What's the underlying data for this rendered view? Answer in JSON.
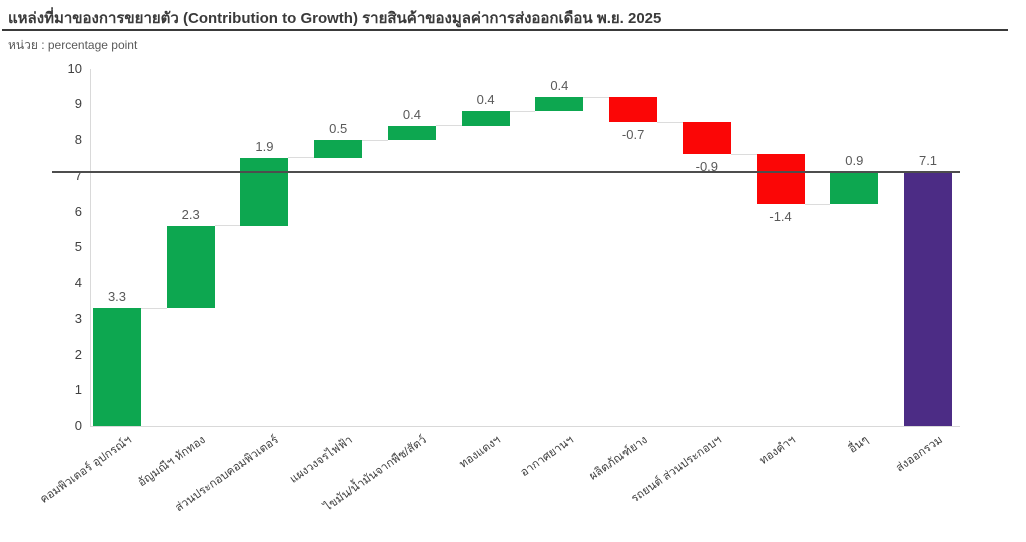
{
  "chart_data": {
    "type": "bar",
    "subtype": "waterfall",
    "title": "แหล่งที่มาของการขยายตัว (Contribution to Growth) รายสินค้าของมูลค่าการส่งออกเดือน พ.ย. 2025",
    "unit_label": "หน่วย : percentage point",
    "categories": [
      "คอมพิวเตอร์ อุปกรณ์ฯ",
      "อัญมณีฯ หักทอง",
      "ส่วนประกอบคอมพิวเตอร์",
      "แผงวงจรไฟฟ้า",
      "ไขมัน/น้ำมันจากพืช/สัตว์",
      "ทองแดงฯ",
      "อากาศยานฯ",
      "ผลิตภัณฑ์ยาง",
      "รถยนต์ ส่วนประกอบฯ",
      "ทองคำฯ",
      "อื่นๆ",
      "ส่งออกรวม"
    ],
    "values": [
      3.3,
      2.3,
      1.9,
      0.5,
      0.4,
      0.4,
      0.4,
      -0.7,
      -0.9,
      -1.4,
      0.9,
      7.1
    ],
    "roles": [
      "delta",
      "delta",
      "delta",
      "delta",
      "delta",
      "delta",
      "delta",
      "delta",
      "delta",
      "delta",
      "delta",
      "total"
    ],
    "running_totals": [
      3.3,
      5.6,
      7.5,
      8.0,
      8.4,
      8.8,
      9.2,
      8.5,
      7.6,
      6.2,
      7.1,
      7.1
    ],
    "value_labels": [
      "3.3",
      "2.3",
      "1.9",
      "0.5",
      "0.4",
      "0.4",
      "0.4",
      "-0.7",
      "-0.9",
      "-1.4",
      "0.9",
      "7.1"
    ],
    "ylim": [
      0,
      10
    ],
    "yticks": [
      "0",
      "1",
      "2",
      "3",
      "4",
      "5",
      "6",
      "7",
      "8",
      "9",
      "10"
    ],
    "grid": false,
    "legend": false,
    "reference_line": 7.1,
    "colors": {
      "positive": "#0da750",
      "negative": "#fb0606",
      "total": "#4c2c85",
      "reference_line": "#4d4d4d",
      "axis_line": "#d9d9d9",
      "connector": "#dcdcdc",
      "title_text": "#3a3a3a",
      "value_label": "#595959",
      "tick_label": "#404040"
    }
  }
}
